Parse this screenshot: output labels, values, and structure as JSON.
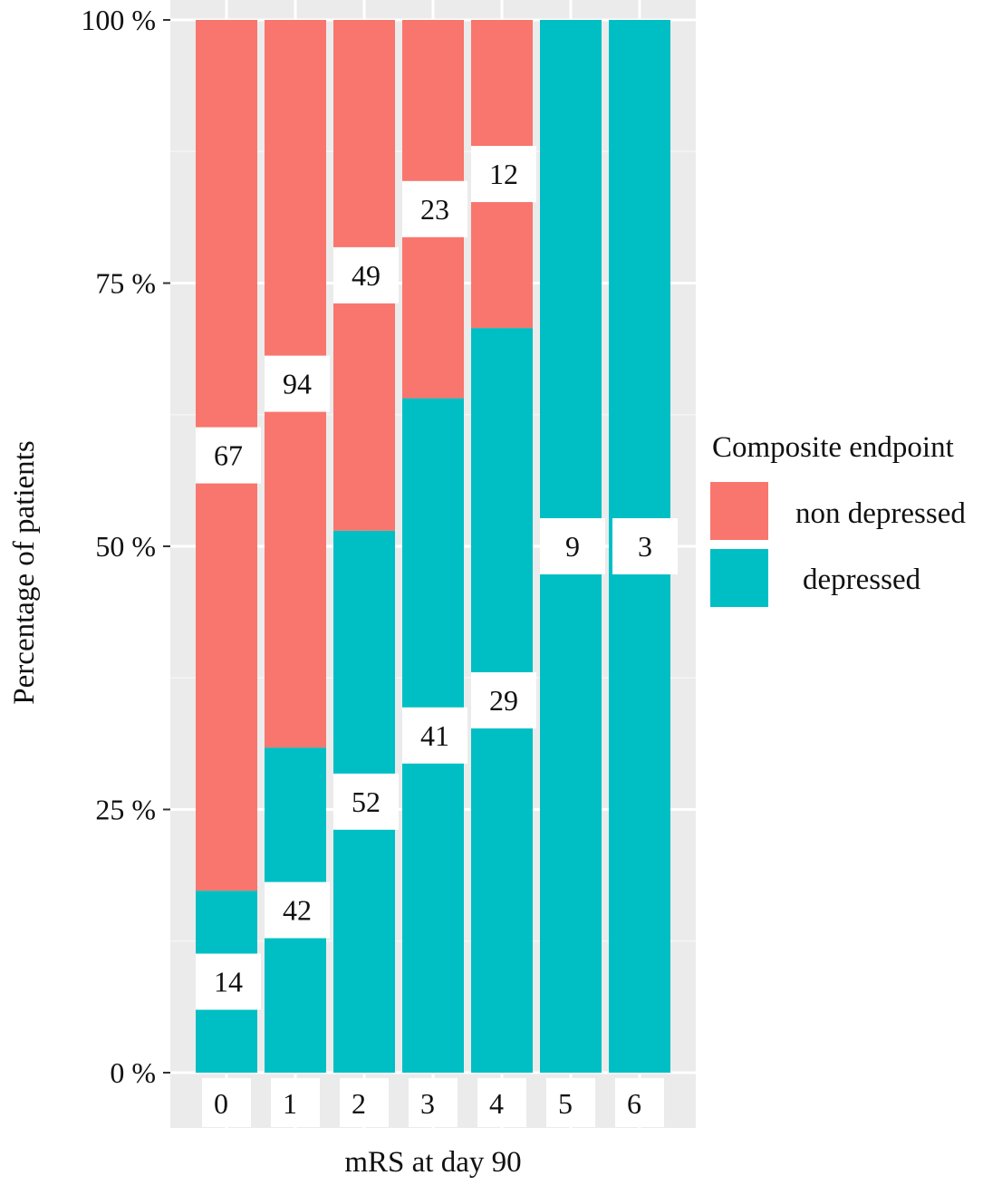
{
  "chart_data": {
    "type": "bar",
    "stacked": true,
    "percent_stacked": true,
    "title": "",
    "xlabel": "mRS at day 90",
    "ylabel": "Percentage of patients",
    "ylim": [
      0,
      100
    ],
    "y_ticks": [
      "0 %",
      "25 %",
      "50 %",
      "75 %",
      "100 %"
    ],
    "y_tick_values": [
      0,
      25,
      50,
      75,
      100
    ],
    "grid": true,
    "categories": [
      "0",
      "1",
      "2",
      "3",
      "4",
      "5",
      "6"
    ],
    "series": [
      {
        "name": "non depressed",
        "color": "#F8766D",
        "counts": [
          67,
          94,
          49,
          23,
          12,
          0,
          0
        ]
      },
      {
        "name": "depressed",
        "color": "#00BFC4",
        "counts": [
          14,
          42,
          52,
          41,
          29,
          9,
          3
        ]
      }
    ],
    "legend": {
      "title": "Composite endpoint",
      "position": "right"
    }
  }
}
